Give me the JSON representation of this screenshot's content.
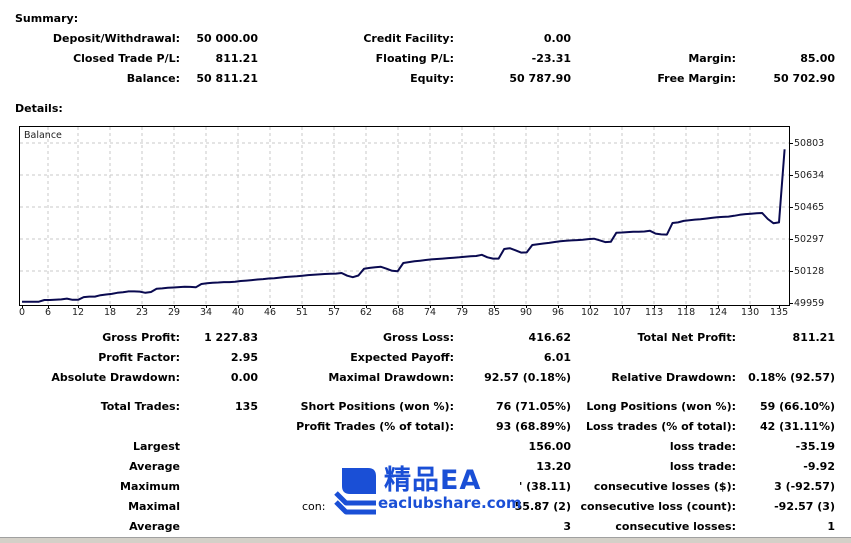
{
  "summary": {
    "title": "Summary:",
    "rows": [
      {
        "label": "Deposit/Withdrawal:",
        "value": "50 000.00"
      },
      {
        "label": "Closed Trade P/L:",
        "value": "811.21"
      },
      {
        "label": "Balance:",
        "value": "50 811.21"
      },
      {
        "label": "Credit Facility:",
        "value": "0.00"
      },
      {
        "label": "Floating P/L:",
        "value": "-23.31"
      },
      {
        "label": "Equity:",
        "value": "50 787.90"
      },
      {
        "label": "Margin:",
        "value": "85.00"
      },
      {
        "label": "Free Margin:",
        "value": "50 702.90"
      }
    ]
  },
  "details": {
    "title": "Details:",
    "chart_label": "Balance"
  },
  "chart_data": {
    "type": "line",
    "title": "Balance",
    "xlabel": "",
    "ylabel": "",
    "x_ticks": [
      "0",
      "6",
      "12",
      "18",
      "23",
      "29",
      "34",
      "40",
      "46",
      "51",
      "57",
      "62",
      "68",
      "74",
      "79",
      "85",
      "90",
      "96",
      "102",
      "107",
      "113",
      "118",
      "124",
      "130",
      "135"
    ],
    "y_ticks": [
      "50803",
      "50634",
      "50465",
      "50297",
      "50128",
      "49959"
    ],
    "ylim": [
      49959,
      50803
    ],
    "xlim": [
      0,
      136
    ],
    "grid": true,
    "line_color": "#0a0a50",
    "series": [
      {
        "name": "Balance",
        "x": [
          0,
          3,
          4,
          5,
          7,
          8,
          9,
          10,
          11,
          12,
          13,
          14,
          15,
          16,
          17,
          18,
          19,
          20,
          21,
          22,
          23,
          24,
          25,
          26,
          27,
          28,
          29,
          30,
          31,
          32,
          33,
          34,
          35,
          36,
          37,
          38,
          39,
          40,
          41,
          42,
          43,
          44,
          45,
          46,
          47,
          48,
          49,
          50,
          51,
          52,
          53,
          54,
          55,
          56,
          57,
          58,
          59,
          60,
          61,
          62,
          63,
          64,
          65,
          66,
          67,
          68,
          69,
          70,
          71,
          72,
          73,
          74,
          75,
          76,
          77,
          78,
          79,
          80,
          81,
          82,
          83,
          84,
          85,
          86,
          87,
          88,
          89,
          90,
          91,
          92,
          93,
          94,
          95,
          96,
          97,
          98,
          99,
          100,
          101,
          102,
          103,
          104,
          105,
          106,
          107,
          108,
          109,
          110,
          111,
          112,
          113,
          114,
          115,
          116,
          117,
          118,
          119,
          120,
          121,
          122,
          123,
          124,
          125,
          126,
          127,
          128,
          129,
          130,
          131,
          132,
          133,
          134,
          135,
          136
        ],
        "values": [
          49966,
          49966,
          49975,
          49975,
          49978,
          49982,
          49976,
          49976,
          49990,
          49993,
          49993,
          50000,
          50004,
          50007,
          50013,
          50016,
          50020,
          50020,
          50019,
          50013,
          50017,
          50034,
          50036,
          50039,
          50041,
          50043,
          50045,
          50044,
          50042,
          50059,
          50063,
          50066,
          50067,
          50069,
          50069,
          50071,
          50075,
          50077,
          50080,
          50083,
          50085,
          50088,
          50090,
          50093,
          50096,
          50098,
          50100,
          50103,
          50106,
          50108,
          50110,
          50112,
          50113,
          50114,
          50117,
          50103,
          50095,
          50104,
          50140,
          50144,
          50148,
          50150,
          50140,
          50129,
          50127,
          50170,
          50175,
          50179,
          50182,
          50186,
          50189,
          50191,
          50193,
          50196,
          50198,
          50200,
          50203,
          50206,
          50207,
          50213,
          50200,
          50193,
          50193,
          50244,
          50248,
          50237,
          50225,
          50226,
          50265,
          50269,
          50273,
          50276,
          50281,
          50285,
          50287,
          50289,
          50291,
          50293,
          50296,
          50298,
          50290,
          50280,
          50282,
          50330,
          50331,
          50333,
          50335,
          50335,
          50336,
          50340,
          50325,
          50321,
          50320,
          50381,
          50384,
          50392,
          50395,
          50399,
          50401,
          50404,
          50408,
          50411,
          50413,
          50415,
          50419,
          50424,
          50428,
          50430,
          50432,
          50434,
          50402,
          50380,
          50384,
          50770
        ]
      }
    ]
  },
  "stats": {
    "row1": [
      {
        "label": "Gross Profit:",
        "value": "1 227.83"
      },
      {
        "label": "Gross Loss:",
        "value": "416.62"
      },
      {
        "label": "Total Net Profit:",
        "value": "811.21"
      }
    ],
    "row2": [
      {
        "label": "Profit Factor:",
        "value": "2.95"
      },
      {
        "label": "Expected Payoff:",
        "value": "6.01"
      }
    ],
    "row3": [
      {
        "label": "Absolute Drawdown:",
        "value": "0.00"
      },
      {
        "label": "Maximal Drawdown:",
        "value": "92.57 (0.18%)"
      },
      {
        "label": "Relative Drawdown:",
        "value": "0.18% (92.57)"
      }
    ],
    "row4": [
      {
        "label": "Total Trades:",
        "value": "135"
      },
      {
        "label": "Short Positions (won %):",
        "value": "76 (71.05%)"
      },
      {
        "label": "Long Positions (won %):",
        "value": "59 (66.10%)"
      }
    ],
    "row5": [
      {
        "label": "Profit Trades (% of total):",
        "value": "93 (68.89%)"
      },
      {
        "label": "Loss trades (% of total):",
        "value": "42 (31.11%)"
      }
    ],
    "row6": [
      {
        "label": "Largest",
        "value": "156.00"
      },
      {
        "label": "loss trade:",
        "value": "-35.19"
      }
    ],
    "row7": [
      {
        "label": "Average",
        "value": "13.20"
      },
      {
        "label": "loss trade:",
        "value": "-9.92"
      }
    ],
    "row8": [
      {
        "label": "Maximum",
        "value": "' (38.11)"
      },
      {
        "label": "consecutive losses ($):",
        "value": "3 (-92.57)"
      }
    ],
    "row9": [
      {
        "label": "Maximal",
        "mid_label": "con:",
        "value": "55.87 (2)"
      },
      {
        "label": "consecutive loss (count):",
        "value": "-92.57 (3)"
      }
    ],
    "row10": [
      {
        "label": "Average",
        "value": "3"
      },
      {
        "label": "consecutive losses:",
        "value": "1"
      }
    ]
  },
  "watermark": {
    "title": "精品EA",
    "url": "eaclubshare.com",
    "color": "#1a4fd6",
    "icon": "stacked-books-icon"
  }
}
